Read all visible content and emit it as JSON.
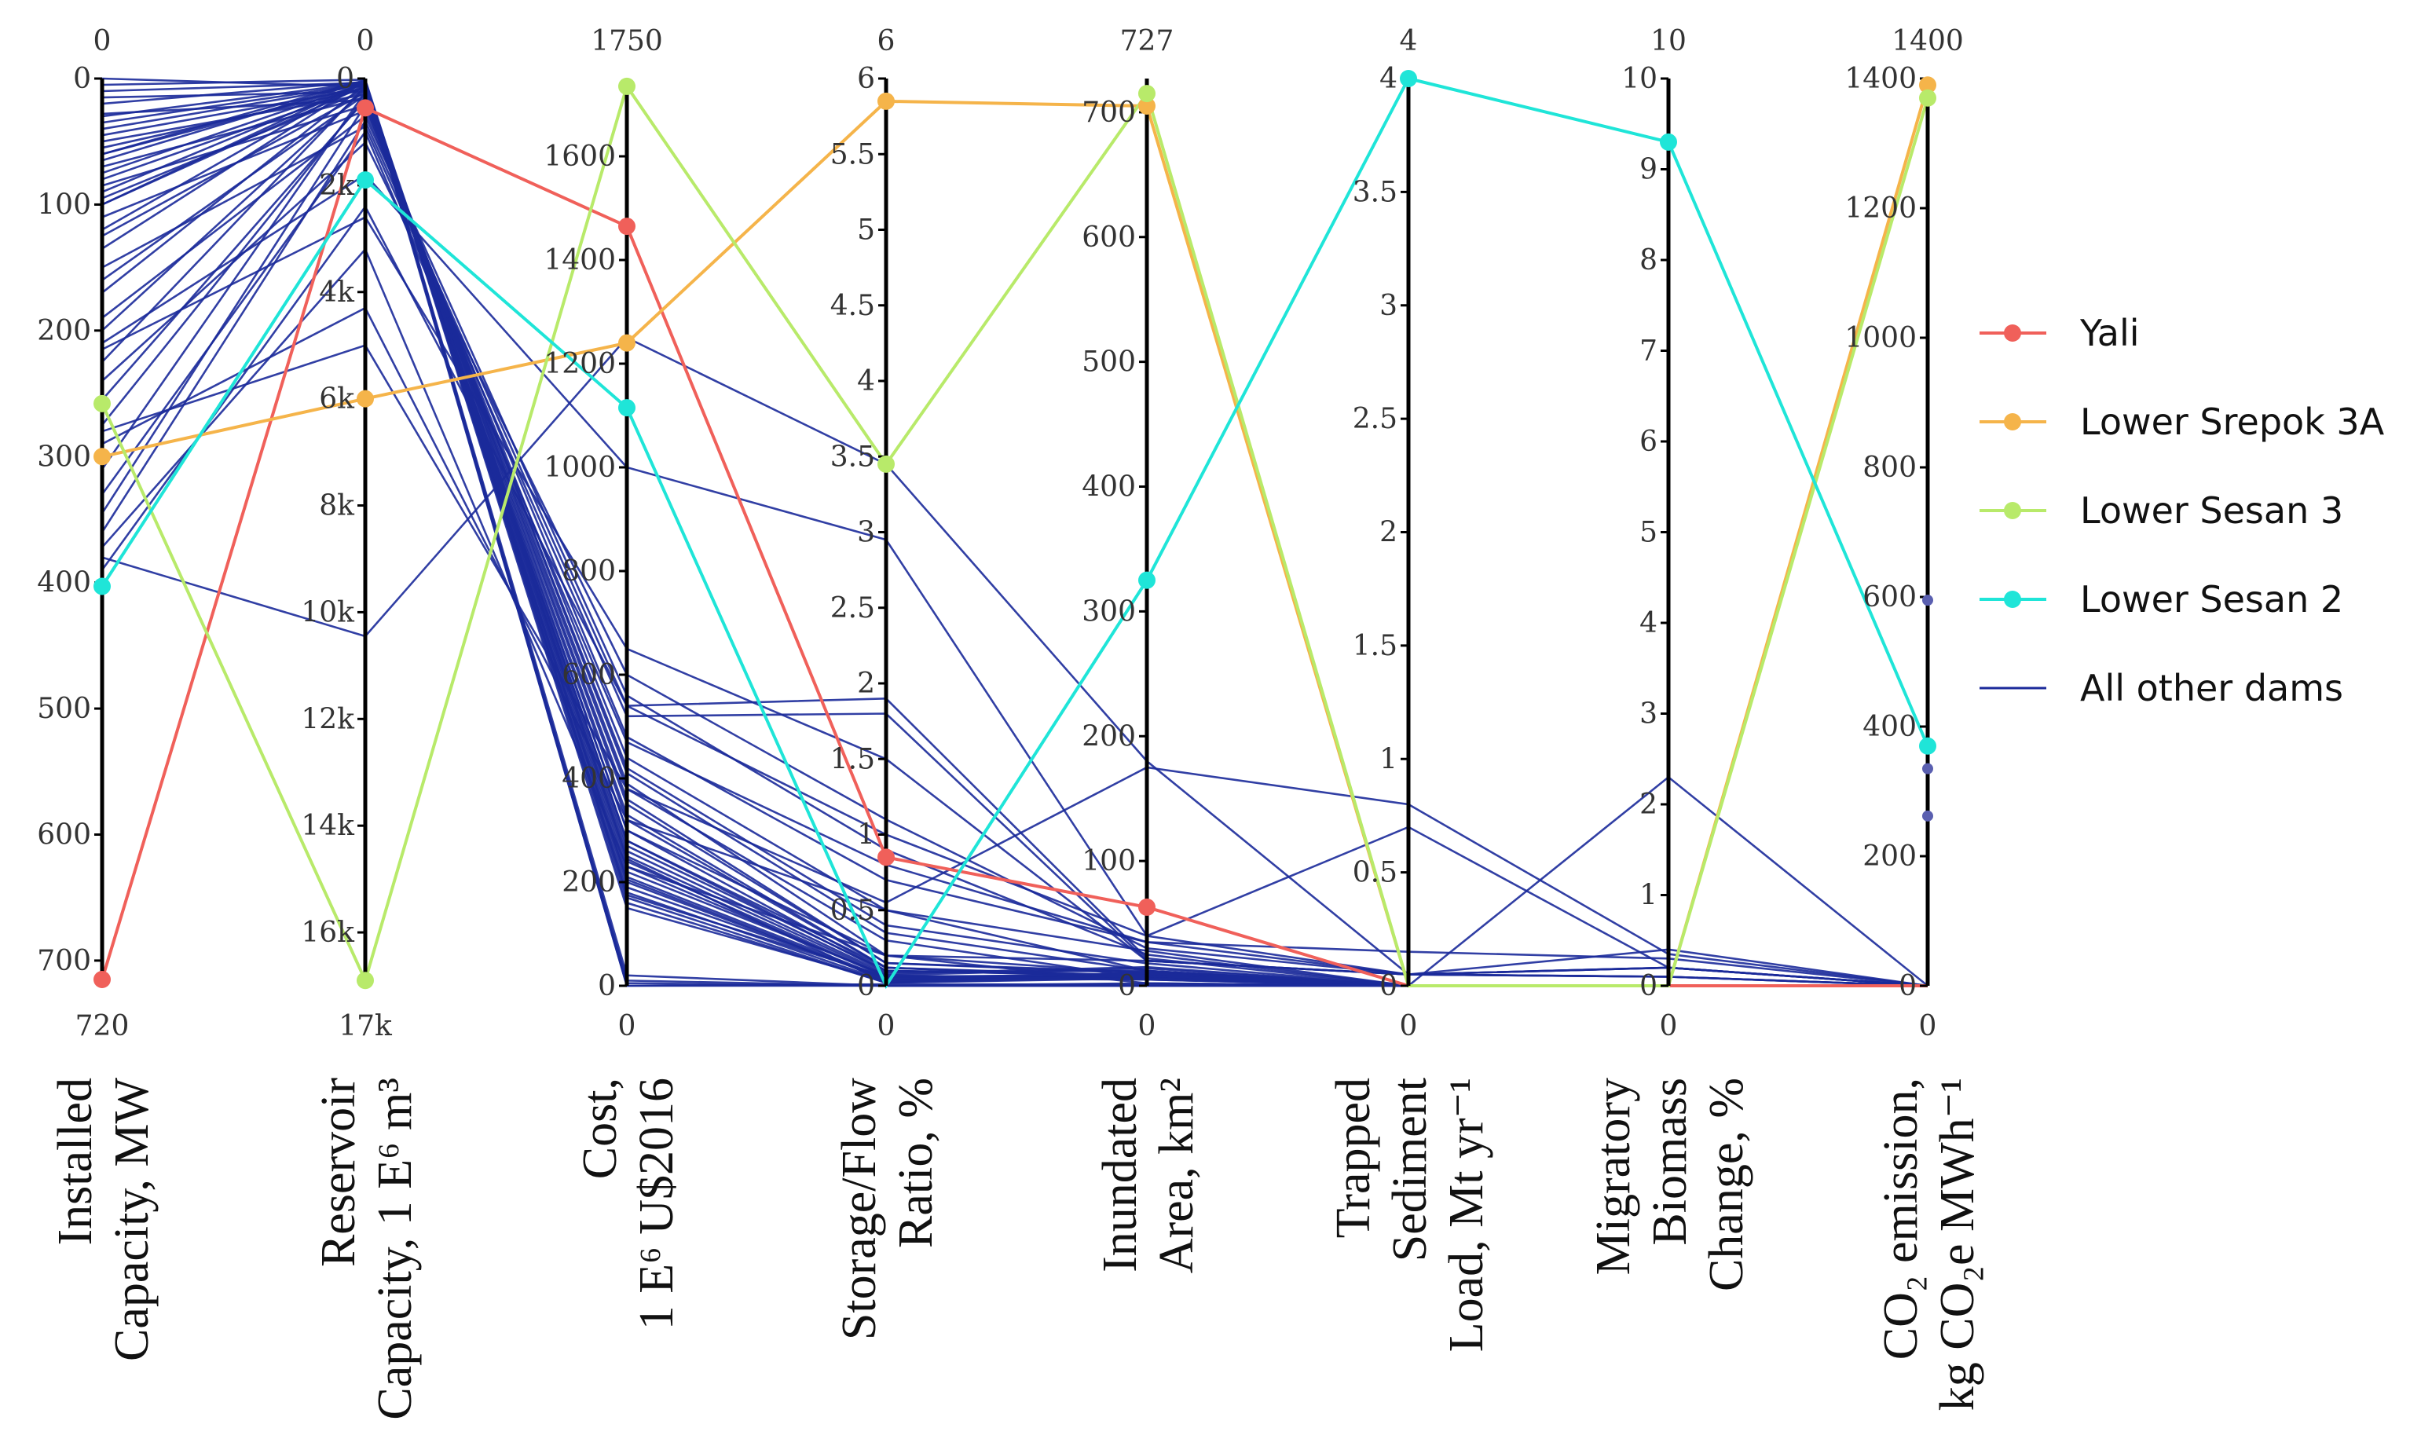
{
  "chart_data": {
    "type": "parallel-coordinates",
    "axes": [
      {
        "id": "cap",
        "title_lines": [
          "Installed",
          "Capacity, MW"
        ],
        "top_label": "0",
        "bottom_label": "720",
        "range": [
          0,
          720
        ],
        "inverted": true,
        "ticks": [
          {
            "v": 0,
            "label": "0"
          },
          {
            "v": 100,
            "label": "100"
          },
          {
            "v": 200,
            "label": "200"
          },
          {
            "v": 300,
            "label": "300"
          },
          {
            "v": 400,
            "label": "400"
          },
          {
            "v": 500,
            "label": "500"
          },
          {
            "v": 600,
            "label": "600"
          },
          {
            "v": 700,
            "label": "700"
          }
        ]
      },
      {
        "id": "res",
        "title_lines": [
          "Reservoir",
          "Capacity, 1 E⁶ m³"
        ],
        "top_label": "0",
        "bottom_label": "17k",
        "range": [
          0,
          17000
        ],
        "inverted": true,
        "ticks": [
          {
            "v": 0,
            "label": "0"
          },
          {
            "v": 2000,
            "label": "2k"
          },
          {
            "v": 4000,
            "label": "4k"
          },
          {
            "v": 6000,
            "label": "6k"
          },
          {
            "v": 8000,
            "label": "8k"
          },
          {
            "v": 10000,
            "label": "10k"
          },
          {
            "v": 12000,
            "label": "12k"
          },
          {
            "v": 14000,
            "label": "14k"
          },
          {
            "v": 16000,
            "label": "16k"
          }
        ]
      },
      {
        "id": "cost",
        "title_lines": [
          "Cost,",
          "1 E⁶ U$2016"
        ],
        "top_label": "1750",
        "bottom_label": "0",
        "range": [
          0,
          1750
        ],
        "inverted": false,
        "ticks": [
          {
            "v": 0,
            "label": "0"
          },
          {
            "v": 200,
            "label": "200"
          },
          {
            "v": 400,
            "label": "400"
          },
          {
            "v": 600,
            "label": "600"
          },
          {
            "v": 800,
            "label": "800"
          },
          {
            "v": 1000,
            "label": "1000"
          },
          {
            "v": 1200,
            "label": "1200"
          },
          {
            "v": 1400,
            "label": "1400"
          },
          {
            "v": 1600,
            "label": "1600"
          }
        ]
      },
      {
        "id": "sfr",
        "title_lines": [
          "Storage/Flow",
          "Ratio, %"
        ],
        "top_label": "6",
        "bottom_label": "0",
        "range": [
          0,
          6
        ],
        "inverted": false,
        "ticks": [
          {
            "v": 0,
            "label": "0"
          },
          {
            "v": 0.5,
            "label": "0.5"
          },
          {
            "v": 1,
            "label": "1"
          },
          {
            "v": 1.5,
            "label": "1.5"
          },
          {
            "v": 2,
            "label": "2"
          },
          {
            "v": 2.5,
            "label": "2.5"
          },
          {
            "v": 3,
            "label": "3"
          },
          {
            "v": 3.5,
            "label": "3.5"
          },
          {
            "v": 4,
            "label": "4"
          },
          {
            "v": 4.5,
            "label": "4.5"
          },
          {
            "v": 5,
            "label": "5"
          },
          {
            "v": 5.5,
            "label": "5.5"
          },
          {
            "v": 6,
            "label": "6"
          }
        ]
      },
      {
        "id": "area",
        "title_lines": [
          "Inundated",
          "Area, km²"
        ],
        "top_label": "727",
        "bottom_label": "0",
        "range": [
          0,
          727
        ],
        "inverted": false,
        "ticks": [
          {
            "v": 0,
            "label": "0"
          },
          {
            "v": 100,
            "label": "100"
          },
          {
            "v": 200,
            "label": "200"
          },
          {
            "v": 300,
            "label": "300"
          },
          {
            "v": 400,
            "label": "400"
          },
          {
            "v": 500,
            "label": "500"
          },
          {
            "v": 600,
            "label": "600"
          },
          {
            "v": 700,
            "label": "700"
          }
        ]
      },
      {
        "id": "sed",
        "title_lines": [
          "Trapped",
          "Sediment",
          "Load, Mt yr⁻¹"
        ],
        "top_label": "4",
        "bottom_label": "0",
        "range": [
          0,
          4
        ],
        "inverted": false,
        "ticks": [
          {
            "v": 0,
            "label": "0"
          },
          {
            "v": 0.5,
            "label": "0.5"
          },
          {
            "v": 1,
            "label": "1"
          },
          {
            "v": 1.5,
            "label": "1.5"
          },
          {
            "v": 2,
            "label": "2"
          },
          {
            "v": 2.5,
            "label": "2.5"
          },
          {
            "v": 3,
            "label": "3"
          },
          {
            "v": 3.5,
            "label": "3.5"
          },
          {
            "v": 4,
            "label": "4"
          }
        ]
      },
      {
        "id": "bio",
        "title_lines": [
          "Migratory",
          "Biomass",
          "Change, %"
        ],
        "top_label": "10",
        "bottom_label": "0",
        "range": [
          0,
          10
        ],
        "inverted": false,
        "ticks": [
          {
            "v": 0,
            "label": "0"
          },
          {
            "v": 1,
            "label": "1"
          },
          {
            "v": 2,
            "label": "2"
          },
          {
            "v": 3,
            "label": "3"
          },
          {
            "v": 4,
            "label": "4"
          },
          {
            "v": 5,
            "label": "5"
          },
          {
            "v": 6,
            "label": "6"
          },
          {
            "v": 7,
            "label": "7"
          },
          {
            "v": 8,
            "label": "8"
          },
          {
            "v": 9,
            "label": "9"
          },
          {
            "v": 10,
            "label": "10"
          }
        ]
      },
      {
        "id": "co2",
        "title_lines": [
          "CO₂ emission,",
          "kg CO₂e  MWh⁻¹"
        ],
        "top_label": "1400",
        "bottom_label": "0",
        "range": [
          0,
          1400
        ],
        "inverted": false,
        "ticks": [
          {
            "v": 0,
            "label": "0"
          },
          {
            "v": 200,
            "label": "200"
          },
          {
            "v": 400,
            "label": "400"
          },
          {
            "v": 600,
            "label": "600"
          },
          {
            "v": 800,
            "label": "800"
          },
          {
            "v": 1000,
            "label": "1000"
          },
          {
            "v": 1200,
            "label": "1200"
          },
          {
            "v": 1400,
            "label": "1400"
          }
        ]
      }
    ],
    "highlighted": [
      {
        "name": "Yali",
        "color": "#f0605a",
        "values": [
          715,
          550,
          1465,
          0.85,
          63,
          0,
          0,
          0
        ]
      },
      {
        "name": "Lower Srepok 3A",
        "color": "#f5b44a",
        "values": [
          300,
          6000,
          1240,
          5.85,
          705,
          0,
          0,
          1390
        ]
      },
      {
        "name": "Lower Sesan 3",
        "color": "#b8ea6a",
        "values": [
          258,
          16900,
          1735,
          3.45,
          715,
          0,
          0,
          1370
        ]
      },
      {
        "name": "Lower Sesan 2",
        "color": "#1fe5d8",
        "values": [
          403,
          1900,
          1115,
          0,
          325,
          4,
          9.3,
          370
        ]
      }
    ],
    "other": {
      "name": "All other dams",
      "color": "#1b2a9a",
      "series": [
        [
          0,
          150,
          205,
          0.04,
          8,
          0,
          0,
          0
        ],
        [
          5,
          20,
          175,
          0.06,
          7,
          0,
          0,
          0
        ],
        [
          10,
          80,
          245,
          0.02,
          11,
          0,
          0,
          0
        ],
        [
          15,
          250,
          330,
          0.12,
          6,
          0,
          0,
          0
        ],
        [
          20,
          60,
          150,
          0.03,
          9,
          0,
          0,
          0
        ],
        [
          28,
          400,
          410,
          0.35,
          12,
          0,
          0,
          0
        ],
        [
          35,
          100,
          190,
          0.05,
          5,
          0,
          0,
          0
        ],
        [
          45,
          180,
          260,
          0.08,
          15,
          0,
          0,
          0
        ],
        [
          50,
          300,
          350,
          0.15,
          10,
          0,
          0,
          0
        ],
        [
          55,
          200,
          300,
          0.1,
          8,
          0,
          0,
          0
        ],
        [
          60,
          120,
          220,
          0.07,
          14,
          0,
          0,
          0
        ],
        [
          65,
          50,
          160,
          0.02,
          7,
          0,
          0,
          0
        ],
        [
          70,
          350,
          390,
          0.2,
          20,
          0.05,
          0.2,
          0
        ],
        [
          75,
          90,
          200,
          0.04,
          9,
          0,
          0,
          0
        ],
        [
          80,
          160,
          240,
          0.06,
          6,
          0,
          0,
          0
        ],
        [
          85,
          500,
          440,
          0.5,
          28,
          0,
          0,
          0
        ],
        [
          90,
          70,
          180,
          0.03,
          8,
          0,
          0,
          0
        ],
        [
          95,
          220,
          280,
          0.09,
          12,
          0,
          0,
          0
        ],
        [
          100,
          130,
          210,
          0.05,
          10,
          0,
          0,
          0
        ],
        [
          110,
          600,
          480,
          0.7,
          35,
          0.05,
          0.1,
          0
        ],
        [
          125,
          260,
          320,
          0.12,
          7,
          0,
          0,
          0
        ],
        [
          135,
          40,
          170,
          0.02,
          6,
          0,
          0,
          0
        ],
        [
          150,
          900,
          520,
          1.8,
          20,
          0.05,
          0.2,
          0
        ],
        [
          160,
          300,
          360,
          0.15,
          11,
          0,
          0,
          0
        ],
        [
          170,
          110,
          230,
          0.06,
          9,
          0,
          0,
          0
        ],
        [
          190,
          700,
          560,
          0.9,
          25,
          0,
          0,
          0
        ],
        [
          200,
          200,
          270,
          0.1,
          8,
          0,
          0,
          0
        ],
        [
          210,
          1800,
          1000,
          2.95,
          40,
          0.7,
          0.2,
          0
        ],
        [
          215,
          2600,
          650,
          1.5,
          20,
          0.05,
          0.1,
          0
        ],
        [
          225,
          150,
          250,
          0.07,
          5,
          0,
          0,
          0
        ],
        [
          240,
          1200,
          600,
          1.1,
          30,
          0.05,
          0.4,
          0
        ],
        [
          255,
          400,
          380,
          0.3,
          6,
          0,
          0,
          0
        ],
        [
          275,
          350,
          300,
          0.2,
          10,
          0,
          0,
          0
        ],
        [
          280,
          5000,
          380,
          0.55,
          175,
          0.8,
          0.35,
          0
        ],
        [
          290,
          4300,
          320,
          0.5,
          12,
          0,
          0,
          0
        ],
        [
          310,
          250,
          280,
          0.12,
          8,
          0,
          0,
          0
        ],
        [
          330,
          1000,
          470,
          0.8,
          35,
          0.15,
          0.3,
          0
        ],
        [
          345,
          500,
          420,
          0.4,
          18,
          0,
          0,
          0
        ],
        [
          360,
          800,
          540,
          1.0,
          40,
          0.05,
          0.2,
          0
        ],
        [
          372,
          3200,
          230,
          0.2,
          2,
          0,
          2.3,
          0
        ],
        [
          380,
          10450,
          1250,
          3.45,
          180,
          0.05,
          0.1,
          0
        ],
        [
          390,
          2400,
          540,
          1.9,
          22,
          0,
          0,
          0
        ],
        [
          30,
          80,
          0,
          0,
          0,
          0,
          0,
          0
        ],
        [
          60,
          30,
          10,
          0,
          0,
          0,
          0,
          0
        ],
        [
          120,
          20,
          20,
          0,
          0,
          0,
          0,
          0
        ],
        [
          40,
          120,
          0,
          0.01,
          1,
          0,
          0,
          0
        ],
        [
          100,
          60,
          5,
          0,
          2,
          0,
          0,
          0
        ]
      ],
      "co2_points": [
        595,
        335,
        262
      ]
    },
    "legend": [
      "Yali",
      "Lower Srepok 3A",
      "Lower Sesan 3",
      "Lower Sesan 2",
      "All other dams"
    ]
  }
}
